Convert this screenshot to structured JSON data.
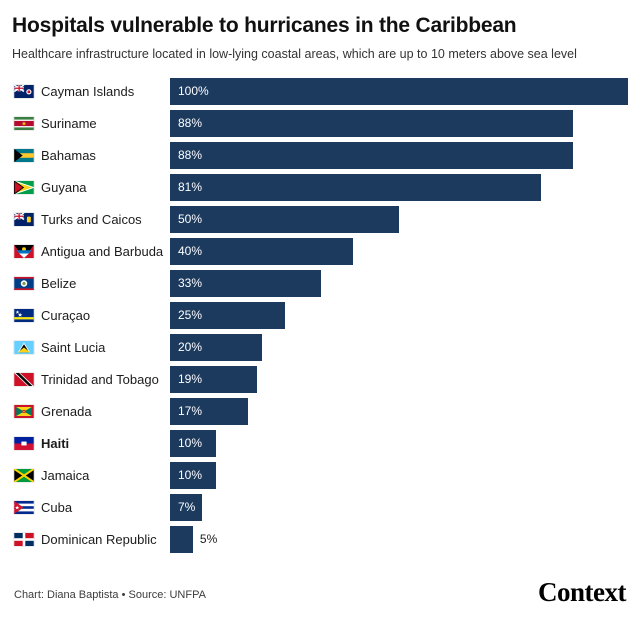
{
  "header": {
    "title": "Hospitals vulnerable to hurricanes in the Caribbean",
    "subtitle": "Healthcare infrastructure located in low-lying coastal areas, which are up to 10 meters above sea level"
  },
  "chart_data": {
    "type": "bar",
    "orientation": "horizontal",
    "bar_color": "#1b3a5e",
    "value_suffix": "%",
    "xlim": [
      0,
      100
    ],
    "grid": false,
    "legend": false,
    "categories": [
      "Cayman Islands",
      "Suriname",
      "Bahamas",
      "Guyana",
      "Turks and Caicos",
      "Antigua and Barbuda",
      "Belize",
      "Curaçao",
      "Saint Lucia",
      "Trinidad and Tobago",
      "Grenada",
      "Haiti",
      "Jamaica",
      "Cuba",
      "Dominican Republic"
    ],
    "values": [
      100,
      88,
      88,
      81,
      50,
      40,
      33,
      25,
      20,
      19,
      17,
      10,
      10,
      7,
      5
    ],
    "rows": [
      {
        "country": "Cayman Islands",
        "value": 100,
        "label": "100%",
        "bold": false,
        "flag": "cayman",
        "label_position": "inside"
      },
      {
        "country": "Suriname",
        "value": 88,
        "label": "88%",
        "bold": false,
        "flag": "suriname",
        "label_position": "inside"
      },
      {
        "country": "Bahamas",
        "value": 88,
        "label": "88%",
        "bold": false,
        "flag": "bahamas",
        "label_position": "inside"
      },
      {
        "country": "Guyana",
        "value": 81,
        "label": "81%",
        "bold": false,
        "flag": "guyana",
        "label_position": "inside"
      },
      {
        "country": "Turks and Caicos",
        "value": 50,
        "label": "50%",
        "bold": false,
        "flag": "turks",
        "label_position": "inside"
      },
      {
        "country": "Antigua and Barbuda",
        "value": 40,
        "label": "40%",
        "bold": false,
        "flag": "antigua",
        "label_position": "inside"
      },
      {
        "country": "Belize",
        "value": 33,
        "label": "33%",
        "bold": false,
        "flag": "belize",
        "label_position": "inside"
      },
      {
        "country": "Curaçao",
        "value": 25,
        "label": "25%",
        "bold": false,
        "flag": "curacao",
        "label_position": "inside"
      },
      {
        "country": "Saint Lucia",
        "value": 20,
        "label": "20%",
        "bold": false,
        "flag": "saintlucia",
        "label_position": "inside"
      },
      {
        "country": "Trinidad and Tobago",
        "value": 19,
        "label": "19%",
        "bold": false,
        "flag": "trinidad",
        "label_position": "inside"
      },
      {
        "country": "Grenada",
        "value": 17,
        "label": "17%",
        "bold": false,
        "flag": "grenada",
        "label_position": "inside"
      },
      {
        "country": "Haiti",
        "value": 10,
        "label": "10%",
        "bold": true,
        "flag": "haiti",
        "label_position": "inside"
      },
      {
        "country": "Jamaica",
        "value": 10,
        "label": "10%",
        "bold": false,
        "flag": "jamaica",
        "label_position": "inside"
      },
      {
        "country": "Cuba",
        "value": 7,
        "label": "7%",
        "bold": false,
        "flag": "cuba",
        "label_position": "inside"
      },
      {
        "country": "Dominican Republic",
        "value": 5,
        "label": "5%",
        "bold": false,
        "flag": "dominican",
        "label_position": "outside"
      }
    ]
  },
  "footer": {
    "credit": "Chart: Diana Baptista • Source: UNFPA",
    "brand": "Context"
  }
}
